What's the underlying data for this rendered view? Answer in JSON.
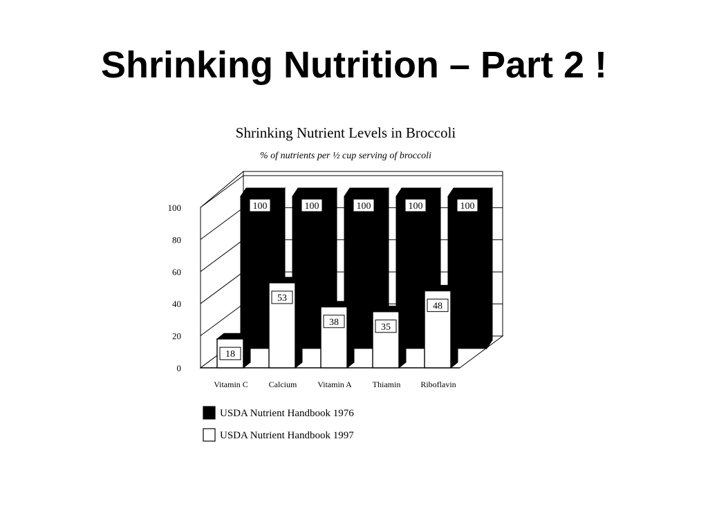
{
  "slide": {
    "title": "Shrinking Nutrition – Part 2 !"
  },
  "chart_data": {
    "type": "bar",
    "title": "Shrinking Nutrient Levels in Broccoli",
    "subtitle": "% of nutrients per ½ cup serving of broccoli",
    "categories": [
      "Vitamin C",
      "Calcium",
      "Vitamin A",
      "Thiamin",
      "Riboflavin"
    ],
    "series": [
      {
        "name": "USDA Nutrient Handbook 1976",
        "values": [
          100,
          100,
          100,
          100,
          100
        ],
        "color": "#000000"
      },
      {
        "name": "USDA Nutrient Handbook 1997",
        "values": [
          18,
          53,
          38,
          35,
          48
        ],
        "color": "#ffffff"
      }
    ],
    "ylim": [
      0,
      100
    ],
    "yticks": [
      0,
      20,
      40,
      60,
      80,
      100
    ],
    "grid": true,
    "style": "3d",
    "legend": "bottom-left"
  }
}
